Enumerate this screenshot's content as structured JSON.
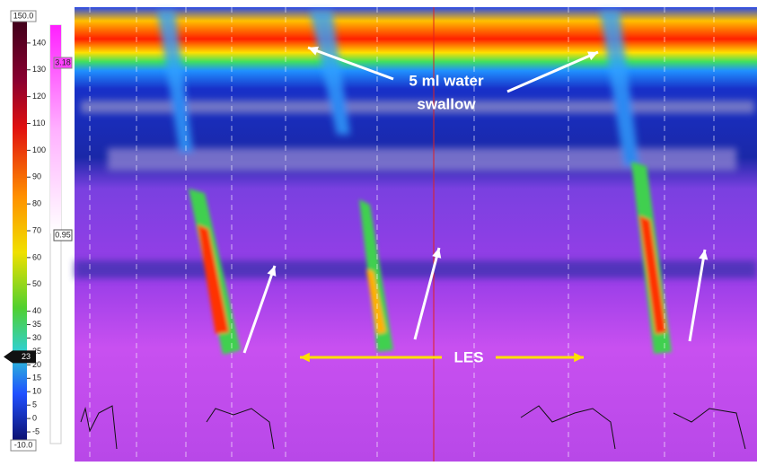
{
  "colorbar": {
    "yticks": [
      {
        "value": 150,
        "label": "150.0"
      },
      140,
      130,
      120,
      110,
      100,
      90,
      80,
      70,
      60,
      50,
      40,
      35,
      30,
      25,
      20,
      15,
      10,
      5,
      0,
      -5,
      {
        "value": -10,
        "label": "-10.0"
      }
    ],
    "ylim": [
      -10,
      150
    ],
    "marker": 23
  },
  "threshold_bar": {
    "top": 3.18,
    "bottom": 0.95
  },
  "annotations": {
    "swallow": [
      "5 ml water",
      "swallow"
    ],
    "les": "LES"
  }
}
